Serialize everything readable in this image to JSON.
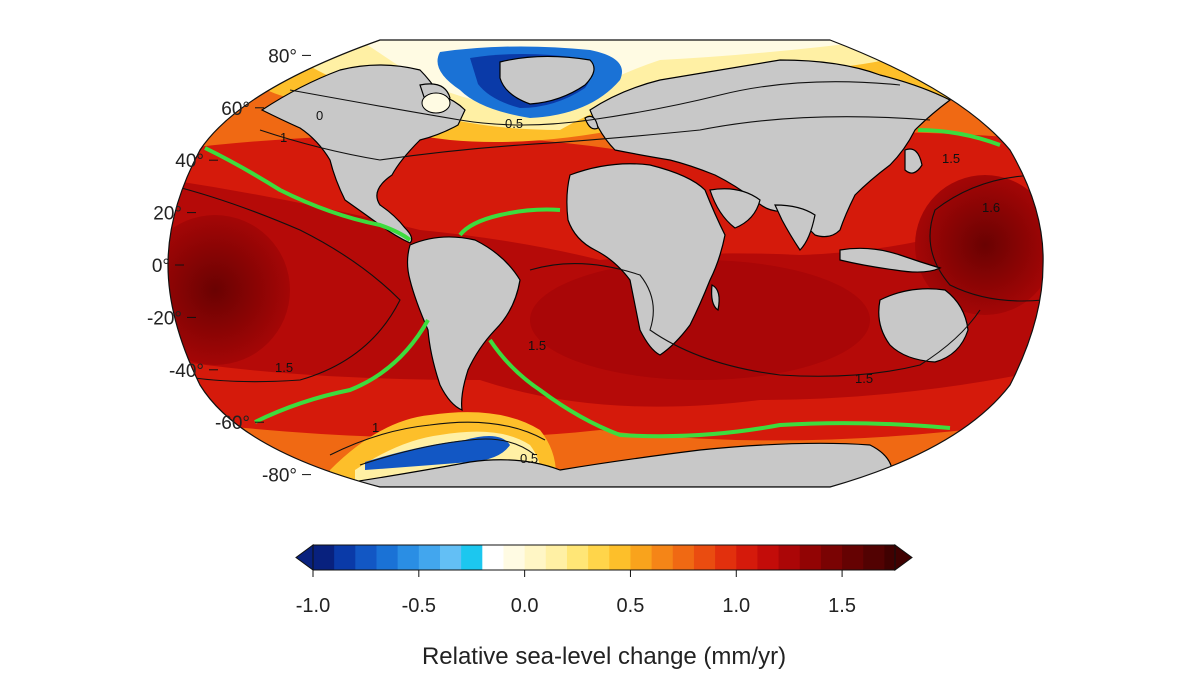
{
  "map": {
    "latitude_labels": [
      {
        "value": "80°",
        "lat": 80
      },
      {
        "value": "60°",
        "lat": 60
      },
      {
        "value": "40°",
        "lat": 40
      },
      {
        "value": "20°",
        "lat": 20
      },
      {
        "value": "0°",
        "lat": 0
      },
      {
        "value": "-20°",
        "lat": -20
      },
      {
        "value": "-40°",
        "lat": -40
      },
      {
        "value": "-60°",
        "lat": -60
      },
      {
        "value": "-80°",
        "lat": -80
      }
    ],
    "contour_labels": [
      "0.5",
      "1",
      "1.5",
      "1.6",
      "1.5",
      "1.5",
      "1.5",
      "1",
      "0.5",
      "0"
    ],
    "highlight_contour_color": "#3ddc3d",
    "land_color": "#c8c8c8"
  },
  "colorbar": {
    "title": "Relative sea-level change (mm/yr)",
    "ticks": [
      "-1.0",
      "-0.5",
      "0.0",
      "0.5",
      "1.0",
      "1.5"
    ],
    "min": -1.0,
    "max": 1.75,
    "step": 0.1,
    "colors": [
      "#08217e",
      "#0a3aa8",
      "#1257c4",
      "#1a72d6",
      "#2a8ee4",
      "#42a6ee",
      "#63bff5",
      "#1cc7ef",
      "#ffffff",
      "#fffbe3",
      "#fff6c5",
      "#fff0a4",
      "#ffe676",
      "#ffd54a",
      "#fdbf2a",
      "#f9a31c",
      "#f58517",
      "#f06913",
      "#ea4c10",
      "#e2300d",
      "#d51a0b",
      "#c30c09",
      "#ab0607",
      "#920404",
      "#7a0303",
      "#650202",
      "#520202",
      "#400101"
    ]
  }
}
